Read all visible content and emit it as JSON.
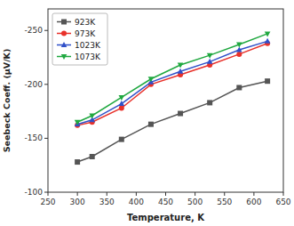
{
  "chart_data": {
    "type": "line",
    "xlabel": "Temperature, K",
    "ylabel": "Seebeck Coeff. (μV/K)",
    "x": [
      300,
      325,
      375,
      425,
      475,
      525,
      575,
      623
    ],
    "series": [
      {
        "name": "923K",
        "color": "#555555",
        "marker": "square",
        "values": [
          -128,
          -133,
          -149,
          -163,
          -173,
          -183,
          -197,
          -203
        ]
      },
      {
        "name": "973K",
        "color": "#e8312a",
        "marker": "circle",
        "values": [
          -162,
          -165,
          -178,
          -200,
          -209,
          -218,
          -228,
          -238
        ]
      },
      {
        "name": "1023K",
        "color": "#3050c8",
        "marker": "triangle-up",
        "values": [
          -163,
          -167,
          -182,
          -202,
          -212,
          -221,
          -232,
          -240
        ]
      },
      {
        "name": "1073K",
        "color": "#20a840",
        "marker": "triangle-down",
        "values": [
          -165,
          -171,
          -188,
          -205,
          -218,
          -227,
          -237,
          -247
        ]
      }
    ],
    "xlim": [
      250,
      650
    ],
    "xticks": [
      250,
      300,
      350,
      400,
      450,
      500,
      550,
      600,
      650
    ],
    "ylim": [
      -100,
      -270
    ],
    "yticks": [
      -250,
      -200,
      -150,
      -100
    ],
    "legend": "upper left"
  }
}
